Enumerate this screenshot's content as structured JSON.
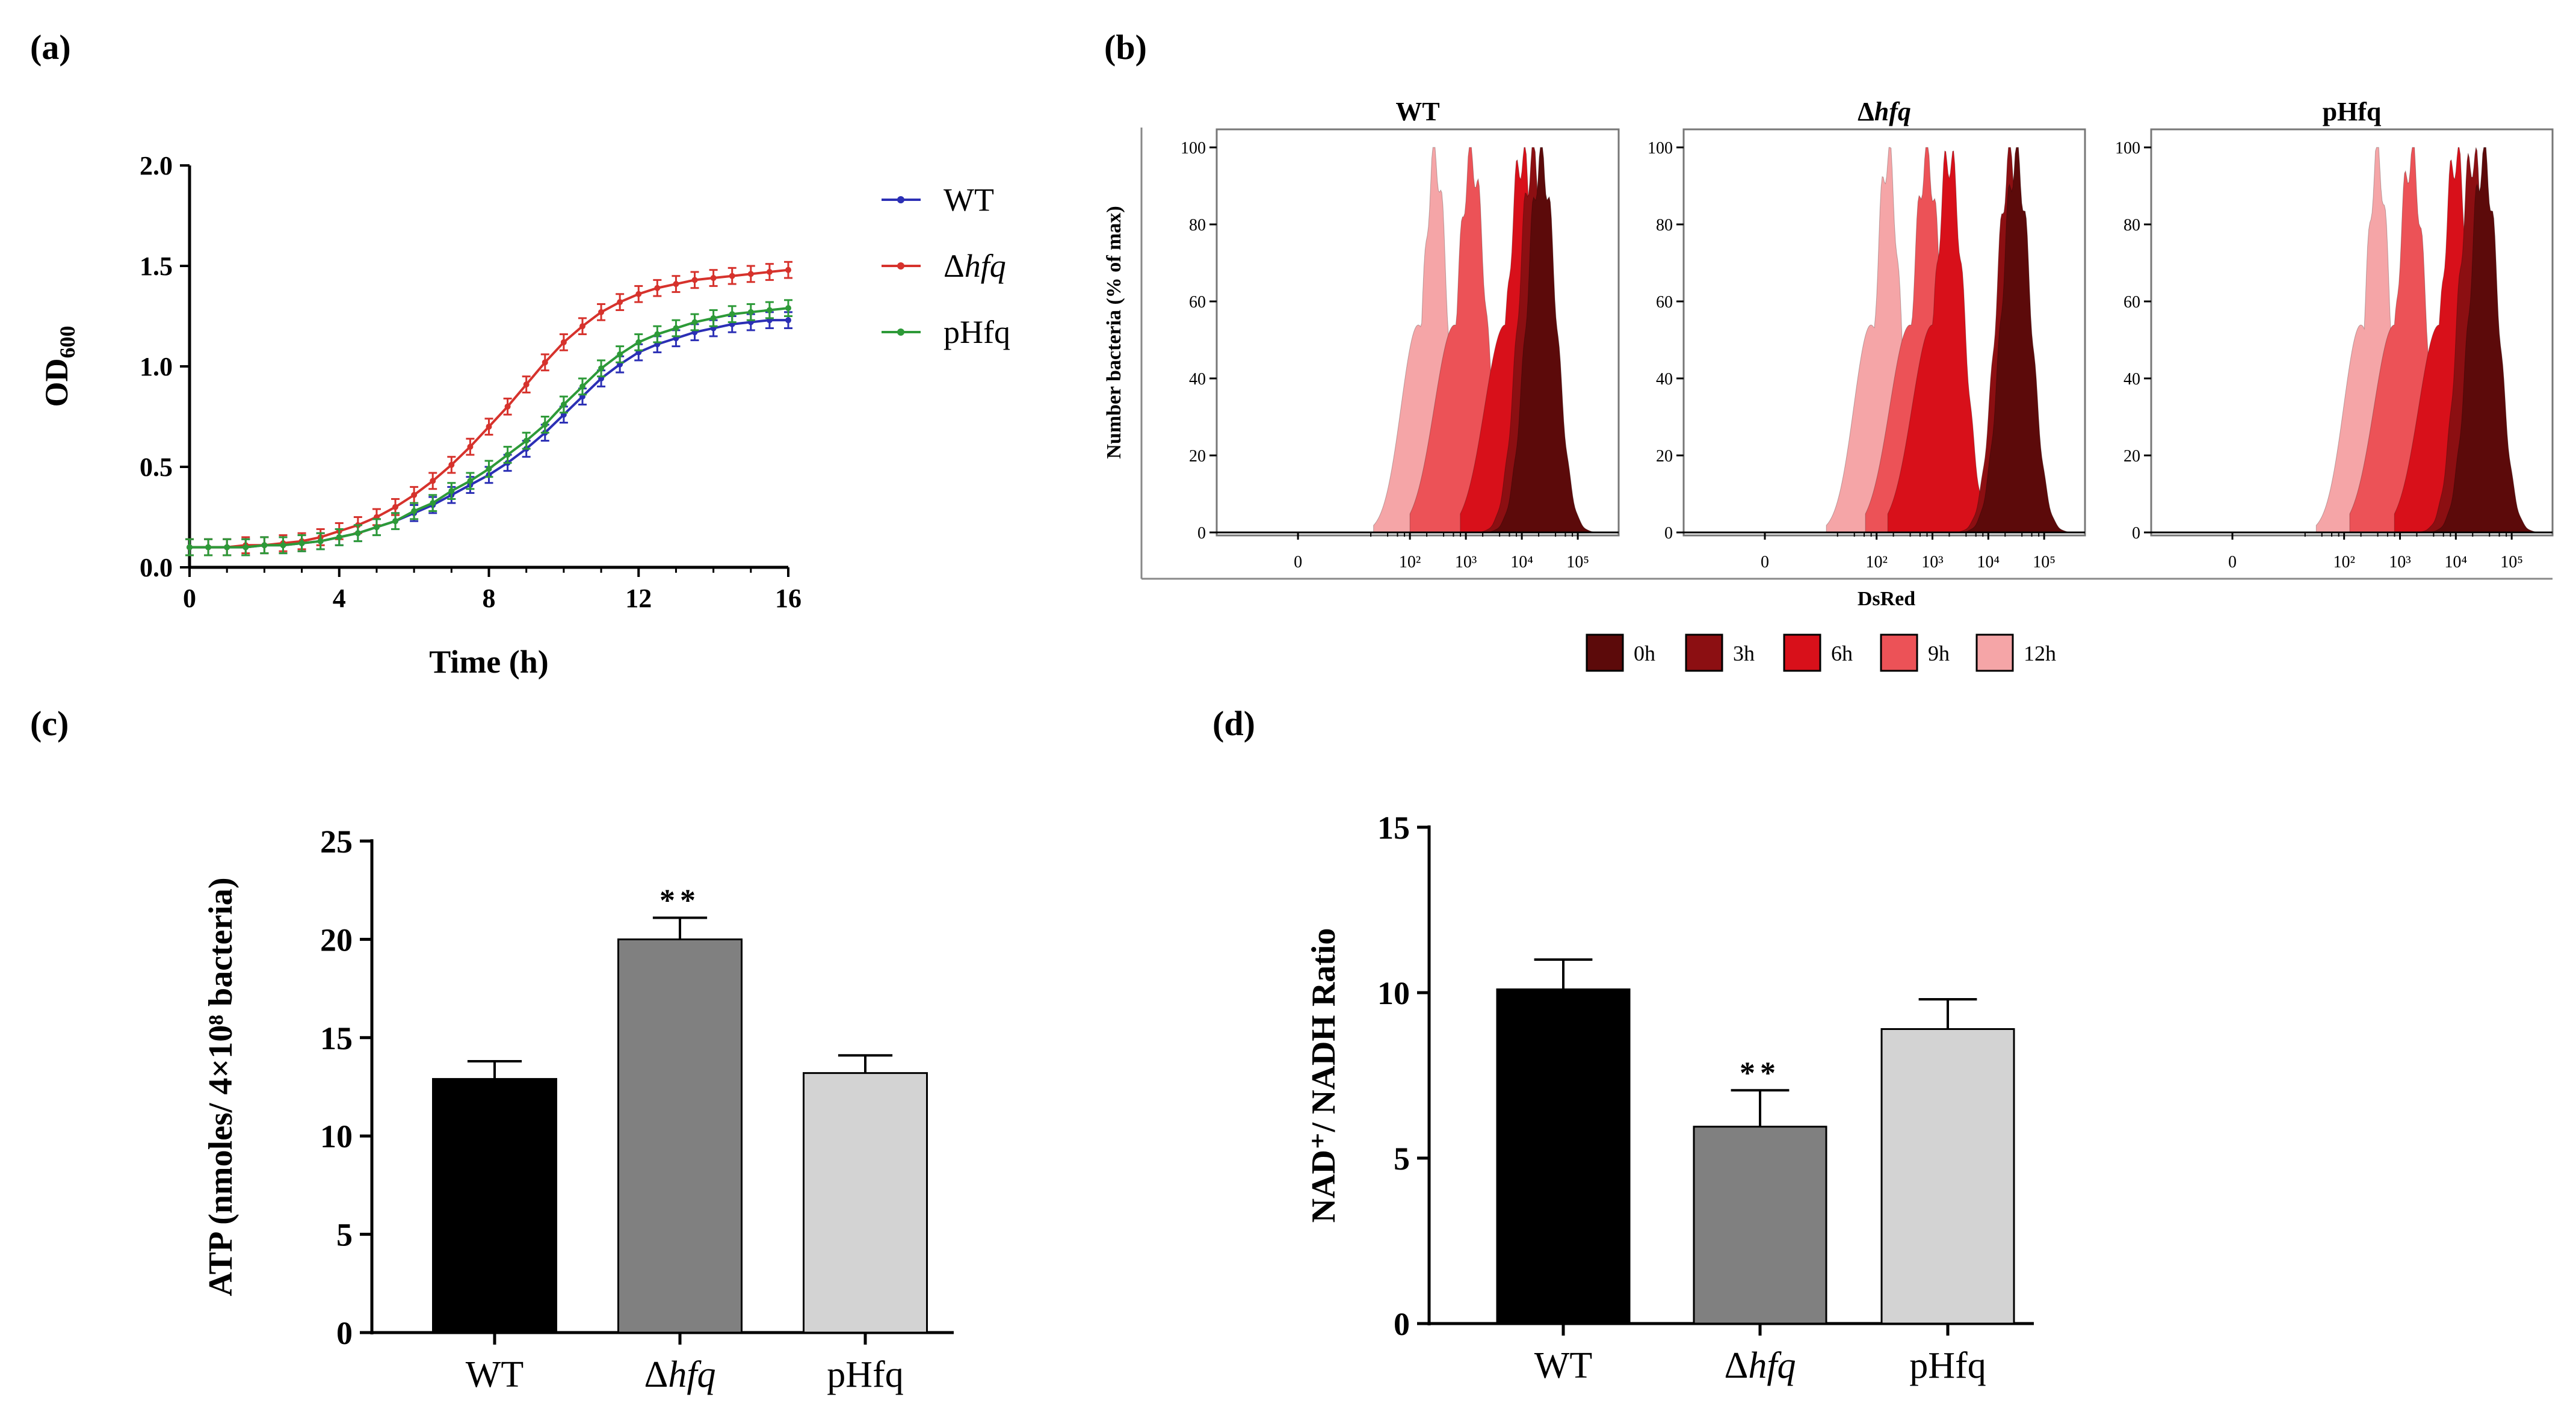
{
  "panels": {
    "a": "(a)",
    "b": "(b)",
    "c": "(c)",
    "d": "(d)"
  },
  "chart_data": [
    {
      "id": "a",
      "type": "line",
      "title": "",
      "xlabel": "Time (h)",
      "ylabel_main": "OD",
      "ylabel_sub": "600",
      "xlim": [
        0,
        16
      ],
      "ylim": [
        0,
        2
      ],
      "xticks": [
        0,
        4,
        8,
        12,
        16
      ],
      "yticks": [
        0.0,
        0.5,
        1.0,
        1.5,
        2.0
      ],
      "ytick_labels": [
        "0.0",
        "0.5",
        "1.0",
        "1.5",
        "2.0"
      ],
      "x": [
        0,
        0.5,
        1,
        1.5,
        2,
        2.5,
        3,
        3.5,
        4,
        4.5,
        5,
        5.5,
        6,
        6.5,
        7,
        7.5,
        8,
        8.5,
        9,
        9.5,
        10,
        10.5,
        11,
        11.5,
        12,
        12.5,
        13,
        13.5,
        14,
        14.5,
        15,
        15.5,
        16
      ],
      "series": [
        {
          "name": "WT",
          "name_italic": false,
          "color": "#2b2fb5",
          "values": [
            0.1,
            0.1,
            0.1,
            0.1,
            0.11,
            0.11,
            0.12,
            0.13,
            0.15,
            0.17,
            0.2,
            0.23,
            0.27,
            0.31,
            0.36,
            0.41,
            0.46,
            0.52,
            0.59,
            0.67,
            0.76,
            0.85,
            0.94,
            1.01,
            1.07,
            1.11,
            1.14,
            1.17,
            1.19,
            1.21,
            1.22,
            1.23,
            1.23
          ],
          "err": 0.04
        },
        {
          "name": "Δhfq",
          "name_italic": true,
          "color": "#d6322c",
          "values": [
            0.1,
            0.1,
            0.1,
            0.11,
            0.11,
            0.12,
            0.13,
            0.15,
            0.18,
            0.21,
            0.25,
            0.3,
            0.36,
            0.43,
            0.51,
            0.6,
            0.7,
            0.8,
            0.91,
            1.02,
            1.12,
            1.2,
            1.27,
            1.32,
            1.36,
            1.39,
            1.41,
            1.43,
            1.44,
            1.45,
            1.46,
            1.47,
            1.48
          ],
          "err": 0.04
        },
        {
          "name": "pHfq",
          "name_italic": false,
          "color": "#2d9a38",
          "values": [
            0.1,
            0.1,
            0.1,
            0.1,
            0.11,
            0.11,
            0.12,
            0.13,
            0.15,
            0.17,
            0.2,
            0.23,
            0.28,
            0.32,
            0.38,
            0.43,
            0.49,
            0.56,
            0.63,
            0.71,
            0.81,
            0.9,
            0.99,
            1.06,
            1.12,
            1.16,
            1.19,
            1.22,
            1.24,
            1.26,
            1.27,
            1.28,
            1.29
          ],
          "err": 0.04
        }
      ]
    },
    {
      "id": "b",
      "type": "area",
      "xlabel": "DsRed",
      "ylabel": "Number bacteria (% of max)",
      "yticks": [
        0,
        20,
        40,
        60,
        80,
        100
      ],
      "xtick_labels": [
        "0",
        "10²",
        "10³",
        "10⁴",
        "10⁵"
      ],
      "subplots": [
        {
          "title": "WT",
          "title_italic": false
        },
        {
          "title": "Δhfq",
          "title_italic": true
        },
        {
          "title": "pHfq",
          "title_italic": false
        }
      ],
      "legend": [
        {
          "label": "0h",
          "color": "#5c0a0a"
        },
        {
          "label": "3h",
          "color": "#8c0f12"
        },
        {
          "label": "6h",
          "color": "#d8101a"
        },
        {
          "label": "9h",
          "color": "#ec5257"
        },
        {
          "label": "12h",
          "color": "#f5a5a7"
        }
      ],
      "peaks_log10": {
        "WT": {
          "0h": 4.35,
          "3h": 4.2,
          "6h": 4.0,
          "9h": 3.1,
          "12h": 2.45
        },
        "Δhfq": {
          "0h": 4.5,
          "3h": 4.4,
          "6h": 3.3,
          "9h": 2.9,
          "12h": 2.2
        },
        "pHfq": {
          "0h": 4.5,
          "3h": 4.3,
          "6h": 4.0,
          "9h": 3.2,
          "12h": 2.6
        }
      }
    },
    {
      "id": "c",
      "type": "bar",
      "ylabel": "ATP (nmoles/ 4×10⁸ bacteria)",
      "ylim": [
        0,
        25
      ],
      "yticks": [
        0,
        5,
        10,
        15,
        20,
        25
      ],
      "categories": [
        {
          "label": "WT",
          "italic": false
        },
        {
          "label": "Δhfq",
          "italic": true
        },
        {
          "label": "pHfq",
          "italic": false
        }
      ],
      "values": [
        12.9,
        20.0,
        13.2
      ],
      "errors": [
        0.9,
        1.1,
        0.9
      ],
      "colors": [
        "#000000",
        "#808080",
        "#d3d3d3"
      ],
      "annotations": [
        "",
        "**",
        ""
      ]
    },
    {
      "id": "d",
      "type": "bar",
      "ylabel": "NAD⁺/ NADH Ratio",
      "ylim": [
        0,
        15
      ],
      "yticks": [
        0,
        5,
        10,
        15
      ],
      "categories": [
        {
          "label": "WT",
          "italic": false
        },
        {
          "label": "Δhfq",
          "italic": true
        },
        {
          "label": "pHfq",
          "italic": false
        }
      ],
      "values": [
        10.1,
        5.95,
        8.9
      ],
      "errors": [
        0.9,
        1.1,
        0.9
      ],
      "colors": [
        "#000000",
        "#808080",
        "#d3d3d3"
      ],
      "annotations": [
        "",
        "**",
        ""
      ]
    }
  ]
}
